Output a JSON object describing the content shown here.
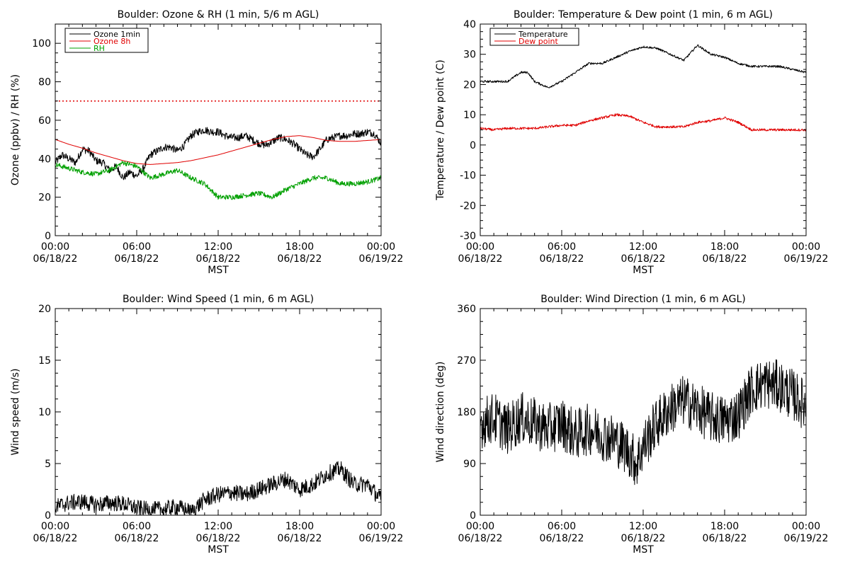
{
  "chart_data": [
    {
      "type": "line",
      "title": "Boulder: Ozone & RH (1 min, 5/6 m AGL)",
      "ylabel": "Ozone (ppbv) / RH (%)",
      "xlabel": "MST",
      "ylim": [
        0,
        110
      ],
      "yticks": [
        0,
        20,
        40,
        60,
        80,
        100
      ],
      "xlim": [
        "06/18/22 00:00",
        "06/19/22 00:00"
      ],
      "xticks": [
        {
          "time": "00:00",
          "date": "06/18/22"
        },
        {
          "time": "06:00",
          "date": "06/18/22"
        },
        {
          "time": "12:00",
          "date": "06/18/22"
        },
        {
          "time": "18:00",
          "date": "06/18/22"
        },
        {
          "time": "00:00",
          "date": "06/19/22"
        }
      ],
      "legend": {
        "position": "top-left",
        "entries": [
          {
            "label": "Ozone 1min",
            "color": "#000000"
          },
          {
            "label": "Ozone 8h",
            "color": "#e00000"
          },
          {
            "label": "RH",
            "color": "#00a000"
          }
        ]
      },
      "reference_line": {
        "y": 70,
        "color": "#e00000",
        "style": "dotted"
      },
      "series": [
        {
          "name": "Ozone 1min",
          "color": "#000000",
          "noise": 2,
          "x": [
            0,
            0.5,
            1,
            1.5,
            2,
            2.5,
            3,
            3.5,
            4,
            4.5,
            5,
            5.5,
            6,
            6.5,
            7,
            7.5,
            8,
            8.5,
            9,
            9.5,
            10,
            10.5,
            11,
            11.5,
            12,
            12.5,
            13,
            13.5,
            14,
            14.5,
            15,
            15.5,
            16,
            16.5,
            17,
            17.5,
            18,
            18.5,
            19,
            19.5,
            20,
            20.5,
            21,
            21.5,
            22,
            22.5,
            23,
            23.5,
            24
          ],
          "values": [
            38,
            42,
            40,
            38,
            45,
            44,
            39,
            38,
            34,
            36,
            30,
            33,
            31,
            35,
            42,
            44,
            46,
            46,
            44,
            47,
            52,
            54,
            55,
            54,
            54,
            52,
            51,
            51,
            52,
            50,
            48,
            47,
            49,
            51,
            50,
            48,
            45,
            42,
            41,
            45,
            50,
            51,
            52,
            52,
            53,
            53,
            54,
            53,
            48
          ]
        },
        {
          "name": "Ozone 8h",
          "color": "#e00000",
          "noise": 0,
          "x": [
            0,
            1,
            2,
            3,
            4,
            5,
            6,
            7,
            8,
            9,
            10,
            11,
            12,
            13,
            14,
            15,
            16,
            17,
            18,
            19,
            20,
            21,
            22,
            23,
            24
          ],
          "values": [
            50,
            47.5,
            45.5,
            43,
            41,
            39,
            37.5,
            37,
            37.5,
            38,
            39,
            40.5,
            42,
            44,
            46,
            48,
            50,
            51.5,
            52,
            51,
            49.5,
            49,
            49,
            49.5,
            50
          ]
        },
        {
          "name": "RH",
          "color": "#00a000",
          "noise": 1.3,
          "x": [
            0,
            1,
            2,
            3,
            4,
            5,
            6,
            7,
            8,
            9,
            10,
            11,
            12,
            13,
            14,
            15,
            16,
            17,
            18,
            19,
            20,
            21,
            22,
            23,
            24
          ],
          "values": [
            37,
            35,
            33,
            32,
            34,
            38,
            36,
            30,
            32,
            34,
            30,
            27,
            20,
            20,
            21,
            22,
            20,
            24,
            27,
            30,
            30,
            27,
            27,
            28,
            30
          ]
        }
      ]
    },
    {
      "type": "line",
      "title": "Boulder: Temperature & Dew point (1 min, 6 m AGL)",
      "ylabel": "Temperature / Dew point (C)",
      "xlabel": "MST",
      "ylim": [
        -30,
        40
      ],
      "yticks": [
        -30,
        -20,
        -10,
        0,
        10,
        20,
        30,
        40
      ],
      "xlim": [
        "06/18/22 00:00",
        "06/19/22 00:00"
      ],
      "xticks": [
        {
          "time": "00:00",
          "date": "06/18/22"
        },
        {
          "time": "06:00",
          "date": "06/18/22"
        },
        {
          "time": "12:00",
          "date": "06/18/22"
        },
        {
          "time": "18:00",
          "date": "06/18/22"
        },
        {
          "time": "00:00",
          "date": "06/19/22"
        }
      ],
      "legend": {
        "position": "top-left",
        "entries": [
          {
            "label": "Temperature",
            "color": "#000000"
          },
          {
            "label": "Dew point",
            "color": "#e00000"
          }
        ]
      },
      "series": [
        {
          "name": "Temperature",
          "color": "#000000",
          "noise": 0.35,
          "x": [
            0,
            1,
            2,
            3,
            3.5,
            4,
            5,
            6,
            7,
            8,
            9,
            10,
            11,
            12,
            13,
            14,
            15,
            16,
            17,
            18,
            19,
            20,
            21,
            22,
            23,
            24
          ],
          "values": [
            21,
            21,
            21,
            24,
            24,
            21,
            19,
            21,
            24,
            27,
            27,
            29,
            31,
            32.5,
            32,
            30,
            28,
            33,
            30,
            29,
            27,
            26,
            26,
            26,
            25,
            24
          ]
        },
        {
          "name": "Dew point",
          "color": "#e00000",
          "noise": 0.4,
          "x": [
            0,
            1,
            2,
            3,
            4,
            5,
            6,
            7,
            8,
            9,
            10,
            11,
            12,
            13,
            14,
            15,
            16,
            17,
            18,
            19,
            20,
            21,
            22,
            23,
            24
          ],
          "values": [
            5.5,
            5,
            5.5,
            5.5,
            5.5,
            6,
            6.5,
            6.5,
            8,
            9,
            10,
            9.5,
            7.5,
            6,
            6,
            6,
            7.5,
            8,
            9,
            7.5,
            5,
            5,
            5,
            5,
            5
          ]
        }
      ]
    },
    {
      "type": "line",
      "title": "Boulder: Wind Speed (1 min, 6 m AGL)",
      "ylabel": "Wind speed (m/s)",
      "xlabel": "MST",
      "ylim": [
        0,
        20
      ],
      "yticks": [
        0,
        5,
        10,
        15,
        20
      ],
      "xlim": [
        "06/18/22 00:00",
        "06/19/22 00:00"
      ],
      "xticks": [
        {
          "time": "00:00",
          "date": "06/18/22"
        },
        {
          "time": "06:00",
          "date": "06/18/22"
        },
        {
          "time": "12:00",
          "date": "06/18/22"
        },
        {
          "time": "18:00",
          "date": "06/18/22"
        },
        {
          "time": "00:00",
          "date": "06/19/22"
        }
      ],
      "series": [
        {
          "name": "Wind speed",
          "color": "#000000",
          "noise": 0.8,
          "x": [
            0,
            1,
            2,
            3,
            4,
            5,
            6,
            7,
            8,
            9,
            10,
            11,
            12,
            13,
            14,
            15,
            16,
            17,
            18,
            19,
            20,
            21,
            22,
            23,
            24
          ],
          "values": [
            0.8,
            1.2,
            1.3,
            1.0,
            1.2,
            1.1,
            0.7,
            0.5,
            0.6,
            0.8,
            0.3,
            1.5,
            2.0,
            2.2,
            2.0,
            2.5,
            3.0,
            3.5,
            2.5,
            3.0,
            4.0,
            4.5,
            3.0,
            3.0,
            1.5
          ]
        }
      ]
    },
    {
      "type": "line",
      "title": "Boulder: Wind Direction (1 min, 6 m AGL)",
      "ylabel": "Wind direction (deg)",
      "xlabel": "MST",
      "ylim": [
        0,
        360
      ],
      "yticks": [
        0,
        90,
        180,
        270,
        360
      ],
      "xlim": [
        "06/18/22 00:00",
        "06/19/22 00:00"
      ],
      "xticks": [
        {
          "time": "00:00",
          "date": "06/18/22"
        },
        {
          "time": "06:00",
          "date": "06/18/22"
        },
        {
          "time": "12:00",
          "date": "06/18/22"
        },
        {
          "time": "18:00",
          "date": "06/18/22"
        },
        {
          "time": "00:00",
          "date": "06/19/22"
        }
      ],
      "series": [
        {
          "name": "Wind direction",
          "color": "#000000",
          "noise": 45,
          "x": [
            0,
            1,
            2,
            3,
            4,
            5,
            6,
            7,
            8,
            9,
            10,
            11,
            11.5,
            12,
            13,
            14,
            15,
            16,
            17,
            18,
            19,
            20,
            21,
            22,
            23,
            24
          ],
          "values": [
            160,
            170,
            150,
            170,
            160,
            150,
            160,
            140,
            150,
            140,
            130,
            110,
            90,
            120,
            160,
            185,
            200,
            185,
            170,
            165,
            175,
            220,
            230,
            225,
            210,
            190
          ]
        }
      ]
    }
  ]
}
